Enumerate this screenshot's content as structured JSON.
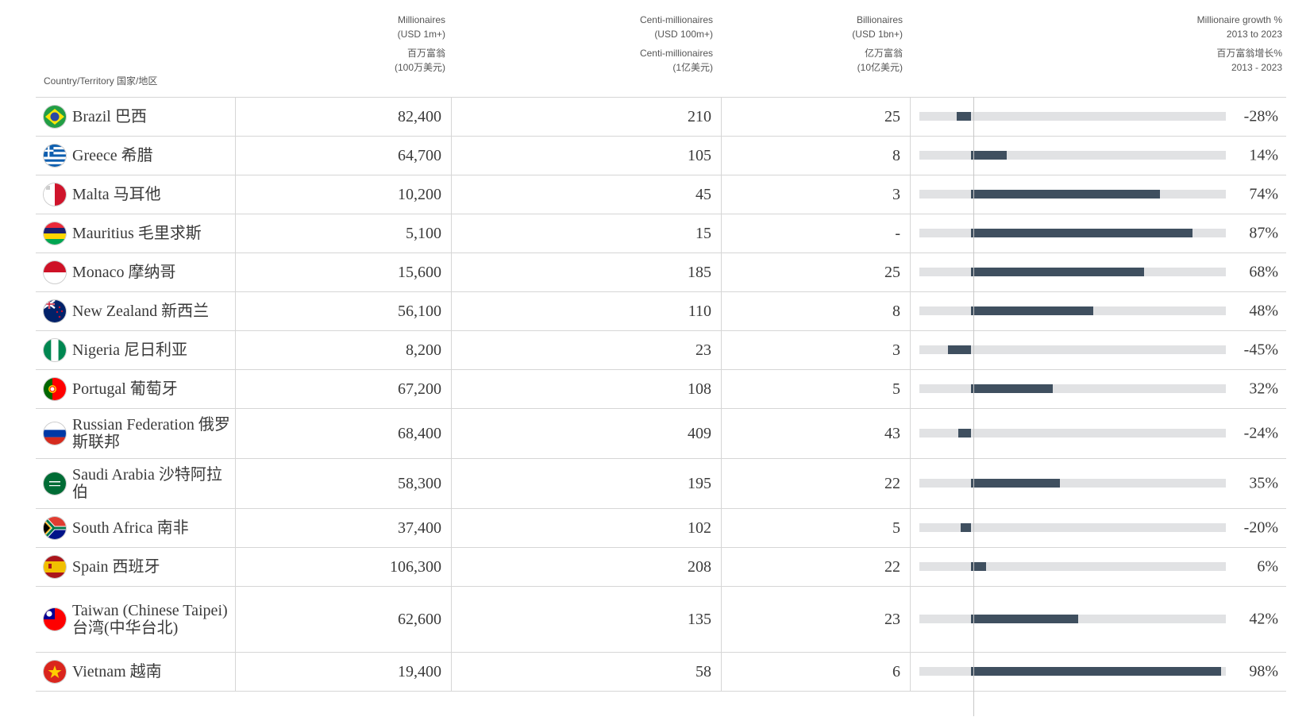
{
  "header": {
    "country": "Country/Territory 国家/地区",
    "millionaires": [
      "Millionaires",
      "(USD 1m+)"
    ],
    "millionaires_cn": [
      "百万富翁",
      "(100万美元)"
    ],
    "centi": [
      "Centi-millionaires",
      "(USD 100m+)"
    ],
    "centi_cn": [
      "Centi-millionaires",
      "(1亿美元)"
    ],
    "billionaires": [
      "Billionaires",
      "(USD 1bn+)"
    ],
    "billionaires_cn": [
      "亿万富翁",
      "(10亿美元)"
    ],
    "growth": [
      "Millionaire growth %",
      "2013 to 2023"
    ],
    "growth_cn": [
      "百万富翁增长%",
      "2013 - 2023"
    ]
  },
  "chart_data": {
    "type": "table",
    "title": "",
    "growth_range": [
      -100,
      100
    ],
    "rows": [
      {
        "country": "Brazil 巴西",
        "flag": "brazil-flag-icon",
        "millionaires": "82,400",
        "centi": "210",
        "billionaires": "25",
        "growth": -28,
        "growth_label": "-28%"
      },
      {
        "country": "Greece 希腊",
        "flag": "greece-flag-icon",
        "millionaires": "64,700",
        "centi": "105",
        "billionaires": "8",
        "growth": 14,
        "growth_label": "14%"
      },
      {
        "country": "Malta 马耳他",
        "flag": "malta-flag-icon",
        "millionaires": "10,200",
        "centi": "45",
        "billionaires": "3",
        "growth": 74,
        "growth_label": "74%"
      },
      {
        "country": "Mauritius 毛里求斯",
        "flag": "mauritius-flag-icon",
        "millionaires": "5,100",
        "centi": "15",
        "billionaires": "-",
        "growth": 87,
        "growth_label": "87%"
      },
      {
        "country": "Monaco 摩纳哥",
        "flag": "monaco-flag-icon",
        "millionaires": "15,600",
        "centi": "185",
        "billionaires": "25",
        "growth": 68,
        "growth_label": "68%"
      },
      {
        "country": "New Zealand 新西兰",
        "flag": "new-zealand-flag-icon",
        "millionaires": "56,100",
        "centi": "110",
        "billionaires": "8",
        "growth": 48,
        "growth_label": "48%"
      },
      {
        "country": "Nigeria 尼日利亚",
        "flag": "nigeria-flag-icon",
        "millionaires": "8,200",
        "centi": "23",
        "billionaires": "3",
        "growth": -45,
        "growth_label": "-45%"
      },
      {
        "country": "Portugal 葡萄牙",
        "flag": "portugal-flag-icon",
        "millionaires": "67,200",
        "centi": "108",
        "billionaires": "5",
        "growth": 32,
        "growth_label": "32%"
      },
      {
        "country": "Russian Federation 俄罗斯联邦",
        "flag": "russia-flag-icon",
        "millionaires": "68,400",
        "centi": "409",
        "billionaires": "43",
        "growth": -24,
        "growth_label": "-24%"
      },
      {
        "country": "Saudi Arabia 沙特阿拉伯",
        "flag": "saudi-arabia-flag-icon",
        "millionaires": "58,300",
        "centi": "195",
        "billionaires": "22",
        "growth": 35,
        "growth_label": "35%"
      },
      {
        "country": "South Africa 南非",
        "flag": "south-africa-flag-icon",
        "millionaires": "37,400",
        "centi": "102",
        "billionaires": "5",
        "growth": -20,
        "growth_label": "-20%"
      },
      {
        "country": "Spain 西班牙",
        "flag": "spain-flag-icon",
        "millionaires": "106,300",
        "centi": "208",
        "billionaires": "22",
        "growth": 6,
        "growth_label": "6%"
      },
      {
        "country": "Taiwan (Chinese Taipei) 台湾(中华台北)",
        "flag": "taiwan-flag-icon",
        "millionaires": "62,600",
        "centi": "135",
        "billionaires": "23",
        "growth": 42,
        "growth_label": "42%"
      },
      {
        "country": "Vietnam 越南",
        "flag": "vietnam-flag-icon",
        "millionaires": "19,400",
        "centi": "58",
        "billionaires": "6",
        "growth": 98,
        "growth_label": "98%"
      }
    ]
  },
  "colors": {
    "bar": "#3f4f5f",
    "track": "#e1e2e4"
  }
}
